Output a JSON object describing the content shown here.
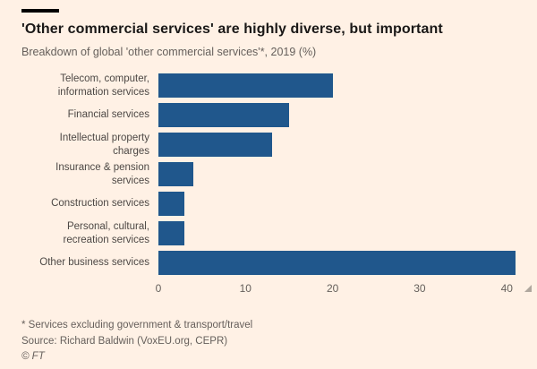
{
  "header": {
    "title": "'Other commercial services' are highly diverse, but important",
    "subtitle": "Breakdown of global 'other commercial services'*, 2019 (%)"
  },
  "chart_data": {
    "type": "bar",
    "orientation": "horizontal",
    "title": "'Other commercial services' are highly diverse, but important",
    "subtitle": "Breakdown of global 'other commercial services'*, 2019 (%)",
    "categories": [
      "Telecom, computer, information services",
      "Financial services",
      "Intellectual property charges",
      "Insurance & pension services",
      "Construction services",
      "Personal, cultural, recreation services",
      "Other business services"
    ],
    "values": [
      20,
      15,
      13,
      4,
      3,
      3,
      41
    ],
    "xlabel": "",
    "ylabel": "",
    "xlim": [
      0,
      41
    ],
    "xticks": [
      0,
      10,
      20,
      30,
      40
    ],
    "grid": false,
    "legend": false,
    "bar_color": "#20578c",
    "background_color": "#fff1e5"
  },
  "footer": {
    "footnote": "* Services excluding government & transport/travel",
    "source": "Source: Richard Baldwin (VoxEU.org, CEPR)",
    "copyright": "© FT"
  }
}
